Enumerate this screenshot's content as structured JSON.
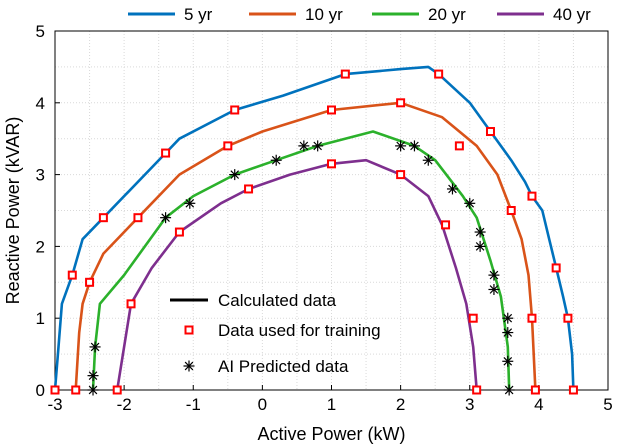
{
  "chart_data": {
    "type": "line",
    "xlabel": "Active Power (kW)",
    "ylabel": "Reactive Power (kVAR)",
    "xlim": [
      -3,
      5
    ],
    "ylim": [
      0,
      5
    ],
    "xticks": [
      -3,
      -2,
      -1,
      0,
      1,
      2,
      3,
      4,
      5
    ],
    "yticks": [
      0,
      1,
      2,
      3,
      4,
      5
    ],
    "grid": true,
    "legend_top": {
      "placement": "top",
      "entries": [
        {
          "name": "5 yr",
          "color": "#0072BD"
        },
        {
          "name": "10 yr",
          "color": "#D95319"
        },
        {
          "name": "20 yr",
          "color": "#2BB12B"
        },
        {
          "name": "40 yr",
          "color": "#7E2F8E"
        }
      ]
    },
    "legend_markers": {
      "placement": "bottom-center",
      "entries": [
        {
          "label": "Calculated data",
          "marker": "line"
        },
        {
          "label": "Data used for training",
          "marker": "square"
        },
        {
          "label": "AI Predicted data",
          "marker": "asterisk"
        }
      ]
    },
    "series": [
      {
        "name": "5 yr",
        "color": "#0072BD",
        "curve": [
          [
            -3,
            0
          ],
          [
            -2.95,
            0.6
          ],
          [
            -2.9,
            1.2
          ],
          [
            -2.75,
            1.6
          ],
          [
            -2.6,
            2.1
          ],
          [
            -2.3,
            2.4
          ],
          [
            -1.4,
            3.3
          ],
          [
            -1.2,
            3.5
          ],
          [
            -0.4,
            3.9
          ],
          [
            0.3,
            4.1
          ],
          [
            1.2,
            4.4
          ],
          [
            2,
            4.47
          ],
          [
            2.4,
            4.5
          ],
          [
            2.55,
            4.4
          ],
          [
            3,
            4.0
          ],
          [
            3.3,
            3.6
          ],
          [
            3.6,
            3.2
          ],
          [
            3.8,
            2.9
          ],
          [
            3.9,
            2.7
          ],
          [
            4.05,
            2.5
          ],
          [
            4.15,
            2.1
          ],
          [
            4.25,
            1.7
          ],
          [
            4.35,
            1.3
          ],
          [
            4.42,
            1.0
          ],
          [
            4.48,
            0.5
          ],
          [
            4.5,
            0
          ]
        ],
        "training": [
          [
            -3,
            0
          ],
          [
            -2.75,
            1.6
          ],
          [
            -2.3,
            2.4
          ],
          [
            -1.4,
            3.3
          ],
          [
            -0.4,
            3.9
          ],
          [
            1.2,
            4.4
          ],
          [
            2.55,
            4.4
          ],
          [
            3.3,
            3.6
          ],
          [
            3.9,
            2.7
          ],
          [
            4.25,
            1.7
          ],
          [
            4.42,
            1.0
          ],
          [
            4.5,
            0
          ]
        ],
        "predicted": []
      },
      {
        "name": "10 yr",
        "color": "#D95319",
        "curve": [
          [
            -2.7,
            0
          ],
          [
            -2.65,
            0.8
          ],
          [
            -2.6,
            1.2
          ],
          [
            -2.5,
            1.5
          ],
          [
            -2.3,
            1.9
          ],
          [
            -1.8,
            2.4
          ],
          [
            -1.2,
            3.0
          ],
          [
            -0.5,
            3.4
          ],
          [
            0,
            3.6
          ],
          [
            1,
            3.9
          ],
          [
            2,
            4.0
          ],
          [
            2.6,
            3.8
          ],
          [
            3.1,
            3.4
          ],
          [
            3.4,
            3.0
          ],
          [
            3.6,
            2.5
          ],
          [
            3.75,
            2.1
          ],
          [
            3.85,
            1.6
          ],
          [
            3.9,
            1.0
          ],
          [
            3.95,
            0
          ]
        ],
        "training": [
          [
            -2.7,
            0
          ],
          [
            -2.5,
            1.5
          ],
          [
            -1.8,
            2.4
          ],
          [
            -0.5,
            3.4
          ],
          [
            1,
            3.9
          ],
          [
            2,
            4.0
          ],
          [
            2.85,
            3.4
          ],
          [
            3.6,
            2.5
          ],
          [
            3.9,
            1.0
          ],
          [
            3.95,
            0
          ]
        ],
        "predicted": []
      },
      {
        "name": "20 yr",
        "color": "#2BB12B",
        "curve": [
          [
            -2.45,
            0
          ],
          [
            -2.42,
            0.6
          ],
          [
            -2.35,
            1.2
          ],
          [
            -2,
            1.6
          ],
          [
            -1.4,
            2.4
          ],
          [
            -1,
            2.7
          ],
          [
            -0.4,
            3.0
          ],
          [
            0.2,
            3.2
          ],
          [
            0.8,
            3.4
          ],
          [
            1.6,
            3.6
          ],
          [
            2.2,
            3.4
          ],
          [
            2.5,
            3.2
          ],
          [
            2.9,
            2.7
          ],
          [
            3.1,
            2.4
          ],
          [
            3.3,
            1.8
          ],
          [
            3.45,
            1.3
          ],
          [
            3.55,
            0.6
          ],
          [
            3.57,
            0
          ]
        ],
        "training": [],
        "predicted": [
          [
            -2.45,
            0
          ],
          [
            -2.45,
            0.2
          ],
          [
            -2.42,
            0.6
          ],
          [
            -1.4,
            2.4
          ],
          [
            -1.05,
            2.6
          ],
          [
            -0.4,
            3.0
          ],
          [
            0.2,
            3.2
          ],
          [
            0.6,
            3.4
          ],
          [
            0.8,
            3.4
          ],
          [
            2.0,
            3.4
          ],
          [
            2.2,
            3.4
          ],
          [
            2.4,
            3.2
          ],
          [
            2.75,
            2.8
          ],
          [
            3.0,
            2.6
          ],
          [
            3.15,
            2.2
          ],
          [
            3.15,
            2.0
          ],
          [
            3.35,
            1.6
          ],
          [
            3.35,
            1.4
          ],
          [
            3.55,
            1.0
          ],
          [
            3.55,
            0.8
          ],
          [
            3.55,
            0.4
          ],
          [
            3.57,
            0
          ]
        ]
      },
      {
        "name": "40 yr",
        "color": "#7E2F8E",
        "curve": [
          [
            -2.1,
            0
          ],
          [
            -2.0,
            0.6
          ],
          [
            -1.9,
            1.2
          ],
          [
            -1.6,
            1.7
          ],
          [
            -1.2,
            2.2
          ],
          [
            -0.6,
            2.6
          ],
          [
            -0.2,
            2.8
          ],
          [
            0.4,
            3.0
          ],
          [
            1,
            3.15
          ],
          [
            1.5,
            3.2
          ],
          [
            2,
            3.0
          ],
          [
            2.4,
            2.7
          ],
          [
            2.6,
            2.3
          ],
          [
            2.8,
            1.7
          ],
          [
            2.95,
            1.2
          ],
          [
            3.05,
            0.6
          ],
          [
            3.1,
            0
          ]
        ],
        "training": [
          [
            -2.1,
            0
          ],
          [
            -1.9,
            1.2
          ],
          [
            -1.2,
            2.2
          ],
          [
            -0.2,
            2.8
          ],
          [
            1,
            3.15
          ],
          [
            2,
            3.0
          ],
          [
            2.65,
            2.3
          ],
          [
            3.05,
            1.0
          ],
          [
            3.1,
            0
          ]
        ],
        "predicted": []
      }
    ]
  }
}
